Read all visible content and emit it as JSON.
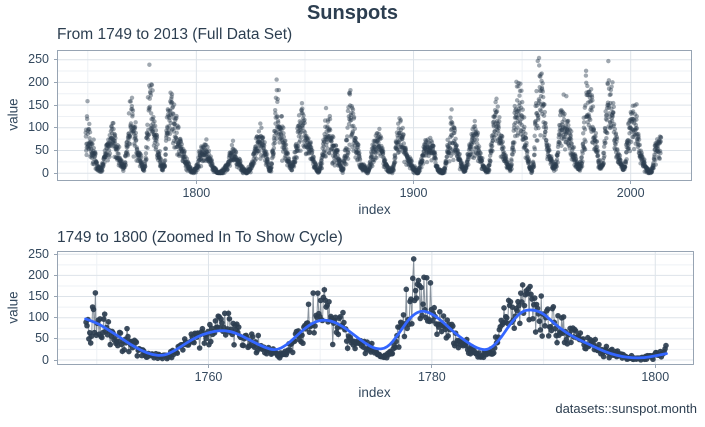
{
  "title": "Sunspots",
  "caption": "datasets::sunspot.month",
  "colors": {
    "background": "#ffffff",
    "text_dark": "#2c3e50",
    "axis_text": "#34495e",
    "point": "#2c3e50",
    "smooth_line": "#3366ff",
    "raw_line": "rgba(44,62,80,0.55)",
    "grid_major": "#dde3e9",
    "grid_minor": "#eef1f5",
    "panel_border": "#97a4b3"
  },
  "dataset": {
    "name": "datasets::sunspot.month",
    "start_year": 1749,
    "annual_means": [
      80.9,
      83.4,
      47.7,
      47.8,
      30.7,
      12.2,
      9.6,
      10.2,
      32.4,
      47.6,
      54.0,
      62.9,
      85.9,
      61.2,
      45.1,
      36.4,
      20.9,
      11.4,
      37.8,
      69.8,
      106.1,
      100.8,
      81.6,
      66.5,
      34.8,
      30.6,
      7.0,
      19.8,
      92.5,
      154.4,
      125.9,
      84.8,
      68.1,
      38.5,
      22.8,
      10.2,
      24.1,
      82.9,
      132.0,
      130.9,
      118.1,
      89.9,
      66.6,
      60.0,
      46.9,
      41.0,
      21.3,
      16.0,
      6.4,
      4.1,
      6.8,
      14.5,
      34.0,
      45.0,
      43.1,
      47.5,
      42.2,
      28.1,
      10.1,
      8.1,
      2.5,
      0.0,
      1.4,
      5.0,
      12.2,
      13.9,
      35.4,
      45.8,
      41.1,
      30.1,
      23.9,
      15.6,
      6.6,
      4.0,
      1.8,
      8.5,
      16.6,
      36.3,
      49.6,
      64.2,
      67.0,
      70.9,
      47.8,
      27.5,
      8.5,
      13.2,
      56.9,
      121.5,
      138.3,
      103.2,
      85.7,
      64.6,
      36.7,
      24.2,
      10.7,
      15.0,
      40.1,
      61.5,
      98.5,
      124.7,
      96.3,
      66.6,
      64.5,
      54.1,
      39.0,
      20.6,
      6.7,
      4.3,
      22.7,
      54.8,
      93.8,
      95.8,
      77.2,
      59.1,
      44.0,
      47.0,
      30.5,
      16.3,
      7.3,
      37.6,
      74.0,
      139.0,
      111.2,
      101.6,
      66.2,
      44.7,
      17.0,
      11.3,
      12.4,
      3.4,
      6.0,
      32.3,
      54.3,
      59.7,
      63.7,
      63.5,
      52.2,
      25.4,
      13.1,
      6.8,
      6.3,
      7.1,
      35.6,
      73.0,
      85.1,
      78.0,
      64.0,
      41.8,
      26.2,
      26.7,
      12.1,
      9.5,
      2.7,
      5.0,
      24.4,
      42.0,
      63.5,
      53.8,
      62.0,
      48.5,
      43.9,
      18.6,
      5.7,
      3.6,
      1.4,
      9.6,
      47.4,
      57.1,
      103.9,
      80.6,
      63.6,
      37.6,
      26.1,
      14.2,
      5.8,
      16.7,
      44.3,
      63.9,
      69.0,
      77.8,
      64.9,
      35.7,
      21.2,
      11.1,
      5.7,
      8.7,
      36.1,
      79.7,
      114.4,
      109.6,
      88.8,
      67.8,
      47.5,
      30.6,
      16.3,
      9.6,
      33.2,
      92.6,
      151.6,
      136.3,
      134.7,
      83.9,
      69.4,
      31.5,
      13.9,
      4.4,
      38.0,
      141.7,
      190.2,
      184.8,
      159.0,
      112.3,
      53.9,
      37.6,
      27.9,
      10.2,
      15.1,
      47.0,
      93.8,
      105.9,
      105.5,
      104.5,
      66.6,
      68.9,
      38.0,
      34.5,
      15.5,
      12.6,
      27.5,
      92.5,
      155.4,
      154.6,
      140.4,
      115.9,
      66.6,
      45.9,
      17.9,
      13.4,
      29.4,
      100.2,
      157.6,
      142.6,
      145.7,
      94.3,
      54.6,
      29.9,
      17.5,
      8.6,
      21.5,
      64.3,
      93.3,
      119.6,
      111.0,
      104.0,
      63.7,
      40.4,
      29.8,
      15.2,
      7.5,
      2.9,
      3.1,
      16.5,
      55.7,
      57.6,
      64.7
    ],
    "monthly_spikes": [
      [
        1749,
        10,
        158.6
      ],
      [
        1769,
        9,
        158.0
      ],
      [
        1770,
        4,
        166.0
      ],
      [
        1778,
        4,
        238.9
      ],
      [
        1787,
        11,
        158.0
      ],
      [
        1836,
        11,
        206.2
      ],
      [
        1870,
        4,
        176.0
      ],
      [
        1947,
        4,
        201.3
      ],
      [
        1957,
        9,
        253.8
      ],
      [
        1989,
        5,
        196.2
      ],
      [
        1991,
        7,
        200.3
      ]
    ]
  },
  "chart_data": [
    {
      "type": "scatter",
      "title": "From 1749 to 2013 (Full Data Set)",
      "xlabel": "index",
      "ylabel": "value",
      "x_domain": [
        1749,
        2014
      ],
      "y_domain": [
        0,
        253.8
      ],
      "x_ticks": [
        1800,
        1900,
        2000
      ],
      "x_minor_ticks": [
        1750,
        1850,
        1950
      ],
      "y_ticks": [
        0,
        50,
        100,
        150,
        200,
        250
      ],
      "y_minor_ticks": [
        25,
        75,
        125,
        175,
        225
      ],
      "grid": true,
      "legend": "none",
      "has_line": false,
      "has_smooth": false
    },
    {
      "type": "scatter",
      "title": "1749 to 1800 (Zoomed In To Show Cycle)",
      "xlabel": "index",
      "ylabel": "value",
      "x_domain": [
        1749,
        1801
      ],
      "y_domain": [
        0,
        253.8
      ],
      "x_ticks": [
        1760,
        1780,
        1800
      ],
      "x_minor_ticks": [
        1750,
        1770,
        1790
      ],
      "y_ticks": [
        0,
        50,
        100,
        150,
        200,
        250
      ],
      "y_minor_ticks": [
        25,
        75,
        125,
        175,
        225
      ],
      "grid": true,
      "legend": "none",
      "has_line": true,
      "has_smooth": true,
      "smooth_curve": {
        "x": [
          1749,
          1750,
          1751,
          1752,
          1753,
          1754,
          1755,
          1756,
          1757,
          1758,
          1759,
          1760,
          1761,
          1762,
          1763,
          1764,
          1765,
          1766,
          1767,
          1768,
          1769,
          1770,
          1771,
          1772,
          1773,
          1774,
          1775,
          1776,
          1777,
          1778,
          1779,
          1780,
          1781,
          1782,
          1783,
          1784,
          1785,
          1786,
          1787,
          1788,
          1789,
          1790,
          1791,
          1792,
          1793,
          1794,
          1795,
          1796,
          1797,
          1798,
          1799,
          1800,
          1801
        ],
        "y": [
          97,
          88,
          72,
          55,
          37,
          22,
          12,
          10,
          22,
          40,
          55,
          65,
          70,
          68,
          57,
          43,
          30,
          22,
          35,
          60,
          83,
          95,
          93,
          80,
          60,
          40,
          25,
          28,
          60,
          100,
          118,
          110,
          90,
          65,
          45,
          28,
          22,
          45,
          85,
          115,
          120,
          110,
          85,
          65,
          50,
          38,
          25,
          15,
          8,
          5,
          5,
          10,
          15
        ]
      }
    }
  ]
}
